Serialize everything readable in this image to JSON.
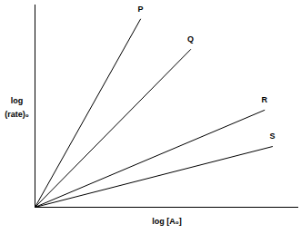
{
  "chart_data": {
    "type": "line",
    "x_label": "log [A₀]",
    "y_label": "log\n(rate)₀",
    "xlim": [
      0,
      10
    ],
    "ylim": [
      0,
      10
    ],
    "xticks": [],
    "yticks": [],
    "tick_labels": false,
    "series": [
      {
        "name": "P",
        "color": "#000000",
        "x": [
          0,
          4.0
        ],
        "values": [
          0,
          9.3
        ]
      },
      {
        "name": "Q",
        "color": "#000000",
        "x": [
          0,
          5.9
        ],
        "values": [
          0,
          7.8
        ]
      },
      {
        "name": "R",
        "color": "#000000",
        "x": [
          0,
          8.7
        ],
        "values": [
          0,
          4.8
        ]
      },
      {
        "name": "S",
        "color": "#000000",
        "x": [
          0,
          9.0
        ],
        "values": [
          0,
          3.0
        ]
      }
    ]
  }
}
